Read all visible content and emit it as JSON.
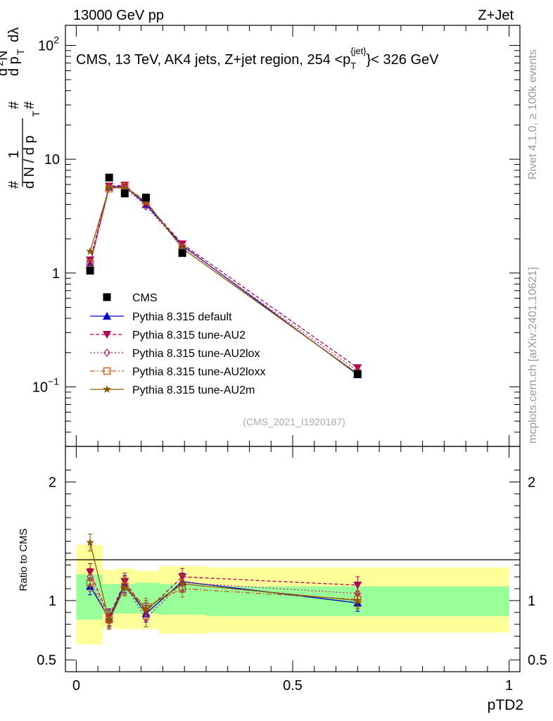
{
  "header": {
    "left": "13000 GeV pp",
    "right": "Z+Jet"
  },
  "side_labels": {
    "rivet": "Rivet 4.1.0, ≥ 100k events",
    "mcplots": "mcplots.cern.ch [arXiv:2401.10621]"
  },
  "chart_data": {
    "type": "line",
    "title": "CMS, 13 TeV, AK4 jets, Z+jet region, 254 <p_T^{jet}< 326 GeV",
    "title_parts": {
      "main": "CMS, 13 TeV, AK4 jets, Z+jet region, 254 <p",
      "sub": "T",
      "sup": "{jet}",
      "tail": "}< 326 GeV"
    },
    "watermark": "(CMS_2021_I1920187)",
    "xlabel": "pTD2",
    "ylabel_main": "# 1/(d N / d p_T #) d^2N/(d p_T dλ)",
    "ylabel_ratio": "Ratio to CMS",
    "xlim": [
      -0.025,
      1.025
    ],
    "ylim_main": [
      0.03,
      150
    ],
    "yscale_main": "log",
    "ylim_ratio": [
      0.4,
      2.3
    ],
    "x_ticks": [
      0,
      0.5,
      1
    ],
    "x_tick_labels": [
      "0",
      "0.5",
      "1"
    ],
    "y_ticks_main": [
      0.1,
      1,
      10,
      100
    ],
    "y_tick_labels_main": {
      "base": "10",
      "exp_neg": "−1",
      "exp_pos": "2",
      "one": "1",
      "ten": "10"
    },
    "y_ticks_ratio": [
      0.5,
      1,
      2
    ],
    "y_tick_labels_ratio": [
      "0.5",
      "1",
      "2"
    ],
    "bins": [
      [
        0,
        0.06
      ],
      [
        0.06,
        0.09
      ],
      [
        0.09,
        0.135
      ],
      [
        0.135,
        0.19
      ],
      [
        0.19,
        0.3
      ],
      [
        0.3,
        1.0
      ]
    ],
    "x": [
      0.032,
      0.076,
      0.112,
      0.161,
      0.245,
      0.65
    ],
    "data": {
      "name": "CMS",
      "values": [
        1.05,
        6.9,
        5.0,
        4.6,
        1.5,
        0.13
      ],
      "band_inner": [
        [
          0.84,
          1.22
        ],
        [
          0.89,
          1.14
        ],
        [
          0.89,
          1.14
        ],
        [
          0.89,
          1.15
        ],
        [
          0.88,
          1.14
        ],
        [
          0.87,
          1.12
        ]
      ],
      "band_outer": [
        [
          0.63,
          1.47
        ],
        [
          0.77,
          1.26
        ],
        [
          0.76,
          1.27
        ],
        [
          0.76,
          1.25
        ],
        [
          0.72,
          1.29
        ],
        [
          0.73,
          1.28
        ]
      ]
    },
    "series": [
      {
        "name": "Pythia 8.315 default",
        "color": "#0000cc",
        "dash": "",
        "marker": "triangle-up",
        "values": [
          1.2,
          5.7,
          5.8,
          4.0,
          1.75,
          0.128
        ],
        "ratio": [
          1.12,
          0.85,
          1.14,
          0.89,
          1.16,
          0.98
        ]
      },
      {
        "name": "Pythia 8.315 tune-AU2",
        "color": "#b0004f",
        "dash": "5,3",
        "marker": "triangle-down",
        "values": [
          1.3,
          5.8,
          5.9,
          4.1,
          1.8,
          0.147
        ],
        "ratio": [
          1.24,
          0.86,
          1.16,
          0.91,
          1.2,
          1.13
        ]
      },
      {
        "name": "Pythia 8.315 tune-AU2lox",
        "color": "#c0206a",
        "dash": "2,3",
        "marker": "diamond-open",
        "values": [
          1.25,
          5.7,
          5.7,
          3.85,
          1.72,
          0.138
        ],
        "ratio": [
          1.2,
          0.83,
          1.13,
          0.85,
          1.15,
          1.06
        ]
      },
      {
        "name": "Pythia 8.315 tune-AU2loxx",
        "color": "#c85a1e",
        "dash": "7,3,2,3",
        "marker": "square-open",
        "values": [
          1.22,
          5.5,
          5.75,
          4.3,
          1.65,
          0.131
        ],
        "ratio": [
          1.15,
          0.84,
          1.12,
          0.95,
          1.1,
          1.01
        ]
      },
      {
        "name": "Pythia 8.315 tune-AU2m",
        "color": "#8b5a00",
        "dash": "",
        "marker": "star",
        "values": [
          1.55,
          5.6,
          5.6,
          4.25,
          1.65,
          0.13
        ],
        "ratio": [
          1.49,
          0.83,
          1.11,
          0.93,
          1.14,
          1.0
        ]
      }
    ]
  }
}
